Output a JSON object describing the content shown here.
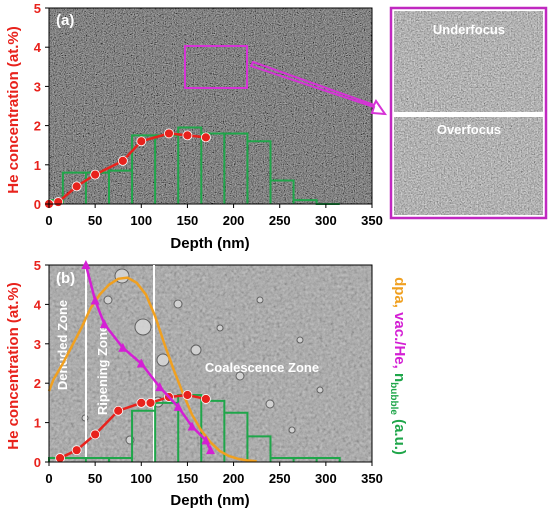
{
  "chart_data": [
    {
      "type": "line",
      "panel_label": "(a)",
      "xlabel": "Depth (nm)",
      "ylabel": "He concentration (at.%)",
      "xlim": [
        0,
        350
      ],
      "ylim": [
        0,
        5
      ],
      "xticks": [
        "0",
        "50",
        "100",
        "150",
        "200",
        "250",
        "300",
        "350"
      ],
      "yticks": [
        "0",
        "1",
        "2",
        "3",
        "4",
        "5"
      ],
      "series": [
        {
          "kind": "line-markers",
          "color": "#e8221c",
          "x": [
            0,
            10,
            30,
            50,
            80,
            100,
            130,
            150,
            170
          ],
          "y": [
            0.0,
            0.05,
            0.45,
            0.75,
            1.1,
            1.6,
            1.8,
            1.75,
            1.7
          ]
        },
        {
          "kind": "histogram-outline",
          "color": "#1fa64a",
          "bin_edges": [
            0,
            15,
            40,
            65,
            90,
            115,
            140,
            165,
            190,
            215,
            240,
            265,
            290,
            315
          ],
          "values": [
            0.1,
            0.8,
            0.8,
            0.85,
            1.75,
            1.75,
            1.95,
            1.8,
            1.8,
            1.6,
            0.6,
            0.1,
            0.0
          ]
        }
      ],
      "insets": [
        {
          "label": "Underfocus"
        },
        {
          "label": "Overfocus"
        }
      ],
      "colors": {
        "highlight_box": "#d633d6",
        "inset_frame": "#c028c0"
      }
    },
    {
      "type": "line",
      "panel_label": "(b)",
      "xlabel": "Depth (nm)",
      "ylabel": "He concentration (at.%)",
      "ylabel_right": [
        "dpa, ",
        "vac./He, ",
        "n",
        "bubble",
        " (a.u.)"
      ],
      "xlim": [
        0,
        350
      ],
      "ylim": [
        0,
        5
      ],
      "xticks": [
        "0",
        "50",
        "100",
        "150",
        "200",
        "250",
        "300",
        "350"
      ],
      "yticks": [
        "0",
        "1",
        "2",
        "3",
        "4",
        "5"
      ],
      "zones": [
        "Denuded Zone",
        "Ripening Zone",
        "Coalescence Zone"
      ],
      "zone_boundaries_nm": [
        40,
        113
      ],
      "series": [
        {
          "kind": "line-markers",
          "color": "#e8221c",
          "x": [
            12,
            30,
            50,
            75,
            100,
            110,
            130,
            150,
            170
          ],
          "y": [
            0.1,
            0.3,
            0.7,
            1.3,
            1.5,
            1.5,
            1.65,
            1.7,
            1.6
          ]
        },
        {
          "kind": "curve",
          "color": "#f0a020",
          "x": [
            0,
            5,
            15,
            25,
            35,
            45,
            55,
            65,
            75,
            85,
            95,
            105,
            115,
            125,
            135,
            145,
            155,
            165,
            175,
            185,
            195,
            205,
            215,
            225
          ],
          "y": [
            1.8,
            2.1,
            2.5,
            2.95,
            3.4,
            3.9,
            4.25,
            4.5,
            4.65,
            4.68,
            4.55,
            4.25,
            3.7,
            3.0,
            2.35,
            1.75,
            1.2,
            0.8,
            0.5,
            0.28,
            0.15,
            0.08,
            0.04,
            0.02
          ]
        },
        {
          "kind": "line-markers",
          "color": "#d41fd4",
          "x": [
            40,
            50,
            60,
            80,
            100,
            120,
            140,
            155,
            170,
            175
          ],
          "y": [
            5.0,
            4.1,
            3.5,
            2.9,
            2.5,
            1.9,
            1.4,
            0.9,
            0.55,
            0.3
          ]
        },
        {
          "kind": "histogram-outline",
          "color": "#1fa64a",
          "bin_edges": [
            0,
            15,
            40,
            65,
            90,
            115,
            140,
            165,
            190,
            215,
            240,
            265,
            290,
            315
          ],
          "values": [
            0.1,
            0.1,
            0.1,
            0.1,
            1.3,
            1.5,
            1.7,
            1.55,
            1.25,
            0.65,
            0.1,
            0.1,
            0.1
          ]
        }
      ],
      "colors": {
        "zone_lines": "#ffffff",
        "right_label_dpa": "#f0a020",
        "right_label_vac": "#d41fd4",
        "right_label_bubble": "#1fa64a"
      }
    }
  ]
}
